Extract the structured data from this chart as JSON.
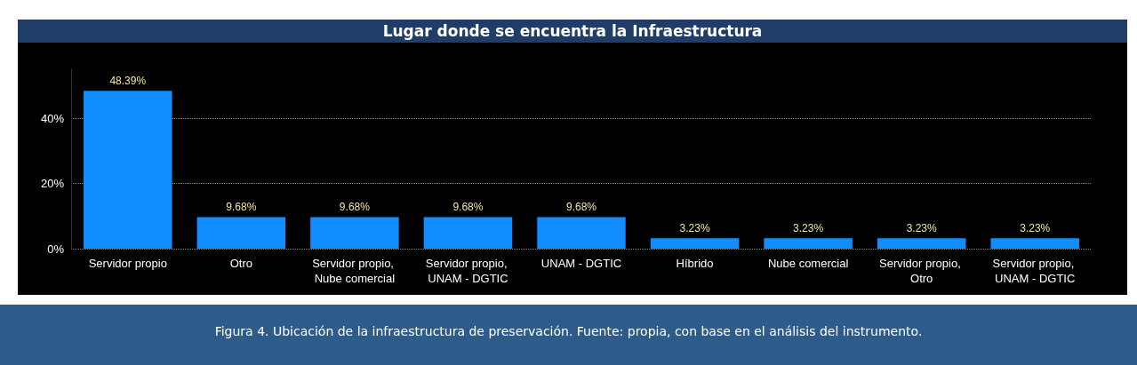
{
  "chart_data": {
    "type": "bar",
    "title": "Lugar donde se encuentra la Infraestructura",
    "categories": [
      "Servidor propio",
      "Otro",
      "Servidor propio, Nube comercial",
      "Servidor propio, UNAM - DGTIC",
      "UNAM - DGTIC",
      "Híbrido",
      "Nube comercial",
      "Servidor propio, Otro",
      "Servidor propio, UNAM - DGTIC"
    ],
    "values": [
      48.39,
      9.68,
      9.68,
      9.68,
      9.68,
      3.23,
      3.23,
      3.23,
      3.23
    ],
    "value_labels": [
      "48.39%",
      "9.68%",
      "9.68%",
      "9.68%",
      "9.68%",
      "3.23%",
      "3.23%",
      "3.23%",
      "3.23%"
    ],
    "color": "#118dff",
    "yticks": [
      {
        "value": 0,
        "label": "0%"
      },
      {
        "value": 20,
        "label": "20%"
      },
      {
        "value": 40,
        "label": "40%"
      }
    ],
    "ylim": [
      0,
      55
    ],
    "grid": "y",
    "annotations": [
      "Figura 4. Ubicación de la infraestructura de preservación. Fuente: propia, con base en el análisis del instrumento."
    ]
  }
}
